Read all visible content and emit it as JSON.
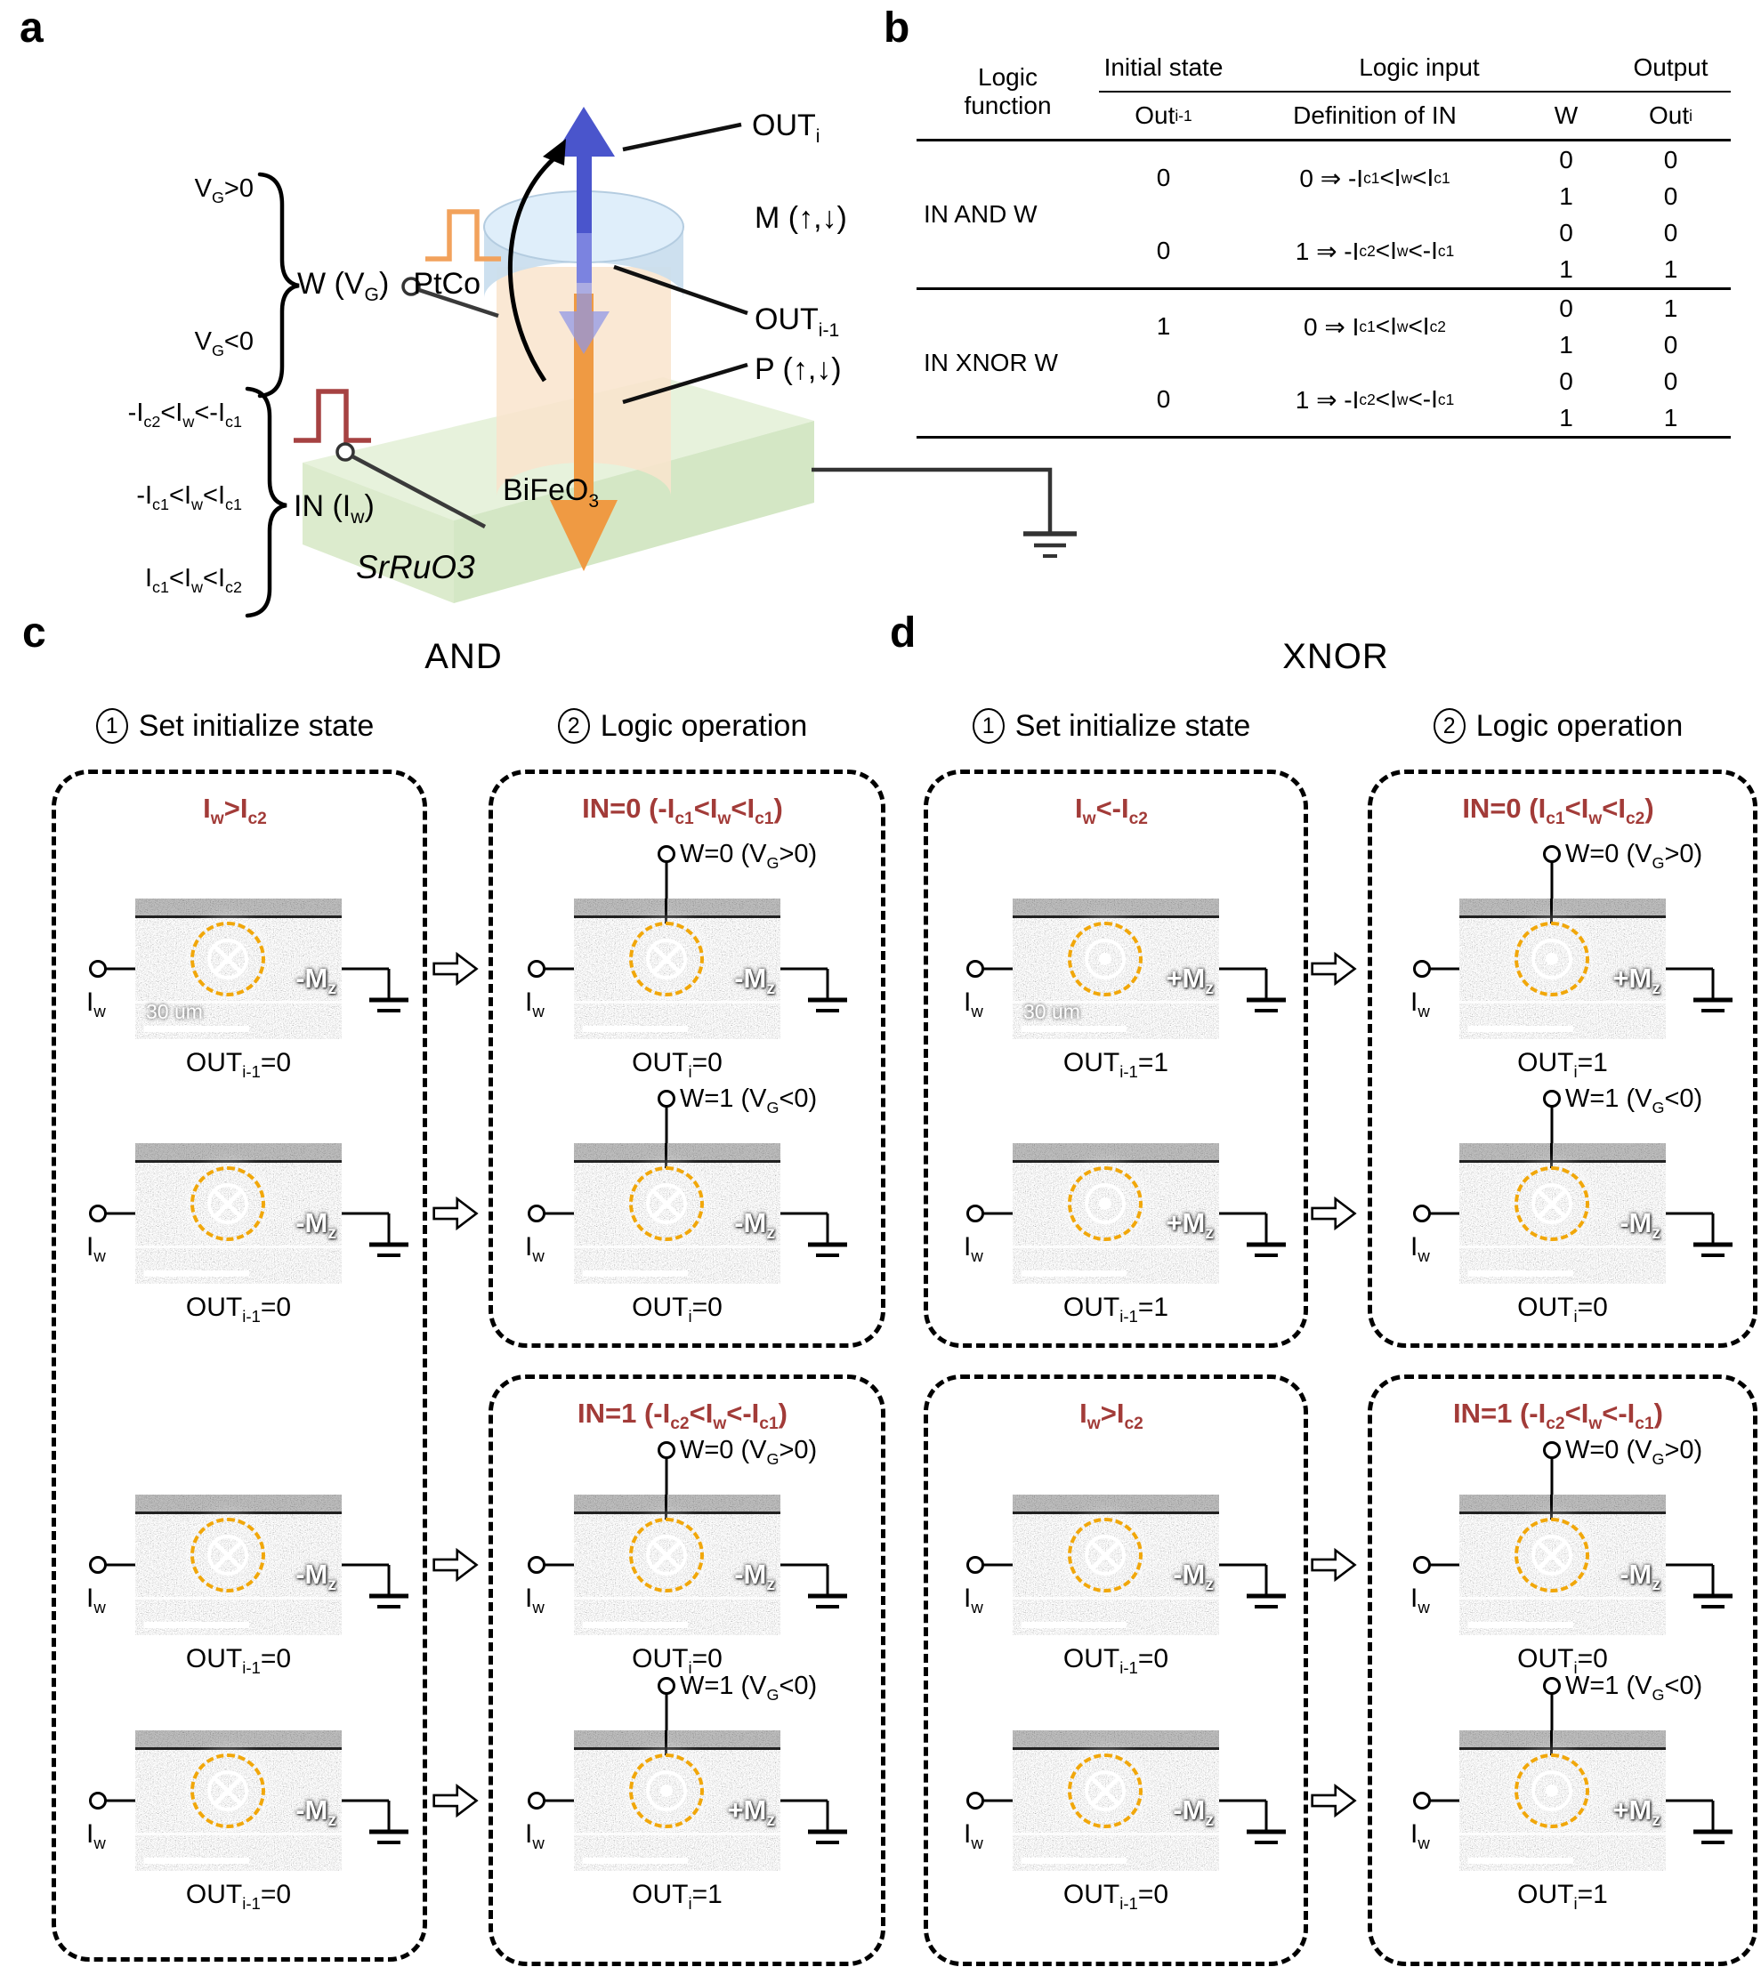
{
  "panel_a": {
    "label": "a",
    "w_conditions": [
      "V_{G}>0",
      "V_{G}<0"
    ],
    "w_label": "W (V_{G})",
    "in_conditions": [
      "-I_{c2}<I_{w}<-I_{c1}",
      "-I_{c1}<I_{w}<I_{c1}",
      "I_{c1}<I_{w}<I_{c2}"
    ],
    "in_label": "IN (I_{w})",
    "out_i": "OUT_{i}",
    "m_label": "M (↑,↓)",
    "out_prev": "OUT_{i-1}",
    "p_label": "P (↑,↓)",
    "ptco": "PtCo",
    "bifeo": "BiFeO_{3}",
    "srruo": "SrRuO3"
  },
  "panel_b": {
    "label": "b",
    "header": {
      "logic1": "Logic",
      "logic2": "function",
      "init": "Initial state",
      "input": "Logic input",
      "output": "Output",
      "s_prev": "Out_{i-1}",
      "s_def": "Definition of IN",
      "s_w": "W",
      "s_out": "Out_{i}"
    },
    "sections": [
      {
        "name": "IN AND W",
        "blocks": [
          {
            "prev": "0",
            "def": "0 ⇒ -I_{c1}<I_{w}<I_{c1}",
            "rows": [
              [
                "0",
                "0"
              ],
              [
                "1",
                "0"
              ]
            ]
          },
          {
            "prev": "0",
            "def": "1 ⇒ -I_{c2}<I_{w}<-I_{c1}",
            "rows": [
              [
                "0",
                "0"
              ],
              [
                "1",
                "1"
              ]
            ]
          }
        ]
      },
      {
        "name": "IN XNOR W",
        "blocks": [
          {
            "prev": "1",
            "def": "0 ⇒  I_{c1}<I_{w}<I_{c2}",
            "rows": [
              [
                "0",
                "1"
              ],
              [
                "1",
                "0"
              ]
            ]
          },
          {
            "prev": "0",
            "def": "1 ⇒ -I_{c2}<I_{w}<-I_{c1}",
            "rows": [
              [
                "0",
                "0"
              ],
              [
                "1",
                "1"
              ]
            ]
          }
        ]
      }
    ]
  },
  "panel_c": {
    "label": "c",
    "title": "AND",
    "step1_num": "1",
    "step1": "Set initialize state",
    "step2_num": "2",
    "step2": "Logic operation",
    "init_cond": "I_{w}>I_{c2}",
    "log_cond1": "IN=0 (-I_{c1}<I_{w}<I_{c1})",
    "log_cond2": "IN=1 (-I_{c2}<I_{w}<-I_{c1})"
  },
  "panel_d": {
    "label": "d",
    "title": "XNOR",
    "step1_num": "1",
    "step1": "Set initialize state",
    "step2_num": "2",
    "step2": "Logic operation",
    "init_cond1": "I_{w}<-I_{c2}",
    "init_cond2": "I_{w}>I_{c2}",
    "log_cond1": "IN=0 (I_{c1}<I_{w}<I_{c2})",
    "log_cond2": "IN=1 (-I_{c2}<I_{w}<-I_{c1})"
  },
  "cells": {
    "c_init": [
      {
        "iw": "I_{w}",
        "caption": "OUT_{i-1}=0",
        "mz": "-M_{z}",
        "sym": "x",
        "scale": "30 um"
      },
      {
        "iw": "I_{w}",
        "caption": "OUT_{i-1}=0",
        "mz": "-M_{z}",
        "sym": "x"
      },
      {
        "iw": "I_{w}",
        "caption": "OUT_{i-1}=0",
        "mz": "-M_{z}",
        "sym": "x"
      },
      {
        "iw": "I_{w}",
        "caption": "OUT_{i-1}=0",
        "mz": "-M_{z}",
        "sym": "x"
      }
    ],
    "c_log": [
      {
        "iw": "I_{w}",
        "w": "W=0 (V_{G}>0)",
        "caption": "OUT_{i}=0",
        "mz": "-M_{z}",
        "sym": "x"
      },
      {
        "iw": "I_{w}",
        "w": "W=1 (V_{G}<0)",
        "caption": "OUT_{i}=0",
        "mz": "-M_{z}",
        "sym": "x"
      },
      {
        "iw": "I_{w}",
        "w": "W=0 (V_{G}>0)",
        "caption": "OUT_{i}=0",
        "mz": "-M_{z}",
        "sym": "x"
      },
      {
        "iw": "I_{w}",
        "w": "W=1 (V_{G}<0)",
        "caption": "OUT_{i}=1",
        "mz": "+M_{z}",
        "sym": "dot"
      }
    ],
    "d_init": [
      {
        "iw": "I_{w}",
        "caption": "OUT_{i-1}=1",
        "mz": "+M_{z}",
        "sym": "dot",
        "scale": "30 um"
      },
      {
        "iw": "I_{w}",
        "caption": "OUT_{i-1}=1",
        "mz": "+M_{z}",
        "sym": "dot"
      },
      {
        "iw": "I_{w}",
        "caption": "OUT_{i-1}=0",
        "mz": "-M_{z}",
        "sym": "x"
      },
      {
        "iw": "I_{w}",
        "caption": "OUT_{i-1}=0",
        "mz": "-M_{z}",
        "sym": "x"
      }
    ],
    "d_log": [
      {
        "iw": "I_{w}",
        "w": "W=0 (V_{G}>0)",
        "caption": "OUT_{i}=1",
        "mz": "+M_{z}",
        "sym": "dot"
      },
      {
        "iw": "I_{w}",
        "w": "W=1 (V_{G}<0)",
        "caption": "OUT_{i}=0",
        "mz": "-M_{z}",
        "sym": "x"
      },
      {
        "iw": "I_{w}",
        "w": "W=0 (V_{G}>0)",
        "caption": "OUT_{i}=0",
        "mz": "-M_{z}",
        "sym": "x"
      },
      {
        "iw": "I_{w}",
        "w": "W=1 (V_{G}<0)",
        "caption": "OUT_{i}=1",
        "mz": "+M_{z}",
        "sym": "dot"
      }
    ]
  }
}
